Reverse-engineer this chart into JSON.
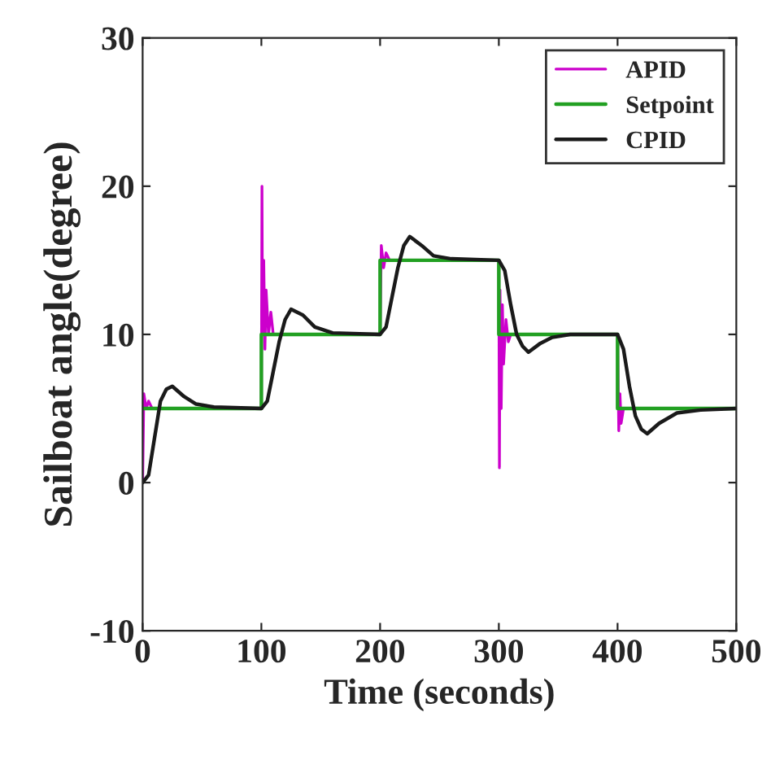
{
  "chart_data": {
    "type": "line",
    "xlabel": "Time (seconds)",
    "ylabel": "Sailboat angle(degree)",
    "xlim": [
      0,
      500
    ],
    "xticks": [
      0,
      100,
      200,
      300,
      400,
      500
    ],
    "ylim": [
      -10,
      30
    ],
    "yticks": [
      -10,
      0,
      10,
      20,
      30
    ],
    "grid": false,
    "legend": "top right",
    "series": [
      {
        "name": "APID",
        "color": "#cc00cc",
        "x": [
          0,
          1,
          3,
          5,
          8,
          100,
          100.5,
          101,
          102,
          103,
          104,
          106,
          108,
          110,
          200,
          201,
          203,
          205,
          208,
          300,
          300.5,
          301,
          302,
          303,
          304,
          306,
          308,
          310,
          400,
          401,
          402,
          403,
          405,
          500
        ],
        "values": [
          0,
          6,
          5,
          5.5,
          5,
          5,
          20,
          10,
          15,
          9,
          13,
          10,
          11.5,
          10,
          10,
          16,
          14.5,
          15.5,
          15,
          15,
          1,
          13,
          5,
          12,
          8,
          11,
          9.5,
          10,
          10,
          3.5,
          6,
          4,
          5,
          5
        ]
      },
      {
        "name": "Setpoint",
        "color": "#22a022",
        "type": "step",
        "x": [
          0,
          100,
          200,
          300,
          400,
          500
        ],
        "values": [
          5,
          10,
          15,
          10,
          5,
          5
        ]
      },
      {
        "name": "CPID",
        "color": "#1a1a1a",
        "x": [
          0,
          5,
          10,
          15,
          20,
          25,
          35,
          45,
          60,
          100,
          105,
          110,
          115,
          120,
          125,
          135,
          145,
          160,
          200,
          205,
          210,
          215,
          220,
          225,
          235,
          245,
          260,
          300,
          305,
          310,
          315,
          320,
          325,
          335,
          345,
          360,
          400,
          405,
          410,
          415,
          420,
          425,
          435,
          450,
          470,
          500
        ],
        "values": [
          0,
          0.5,
          3,
          5.5,
          6.3,
          6.5,
          5.8,
          5.3,
          5.1,
          5,
          5.5,
          7.5,
          9.5,
          11,
          11.7,
          11.3,
          10.5,
          10.1,
          10,
          10.5,
          12.5,
          14.5,
          16,
          16.6,
          16,
          15.3,
          15.1,
          15,
          14.3,
          12,
          10,
          9.2,
          8.8,
          9.4,
          9.8,
          10,
          10,
          9,
          6.5,
          4.5,
          3.6,
          3.3,
          4,
          4.7,
          4.9,
          5
        ]
      }
    ]
  }
}
